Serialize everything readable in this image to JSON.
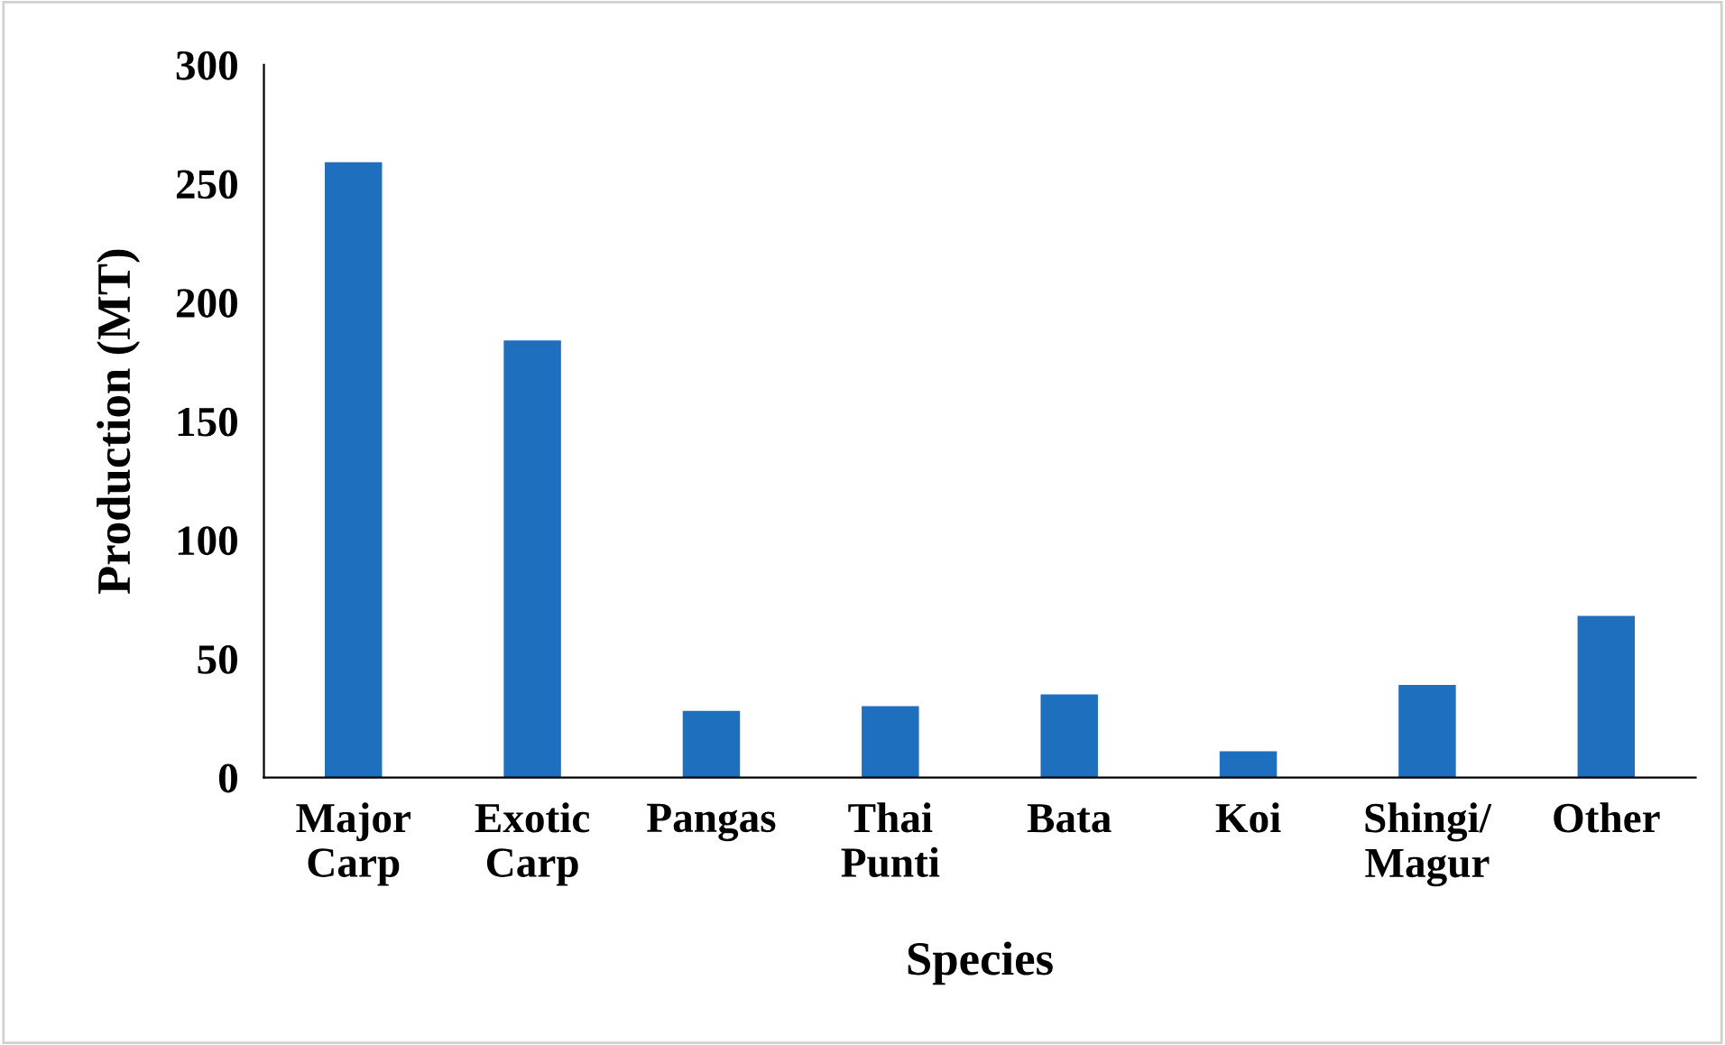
{
  "chart_data": {
    "type": "bar",
    "xlabel": "Species",
    "ylabel": "Production (MT)",
    "categories": [
      "Major\nCarp",
      "Exotic\nCarp",
      "Pangas",
      "Thai\nPunti",
      "Bata",
      "Koi",
      "Shingi/\nMagur",
      "Other"
    ],
    "values": [
      259,
      184,
      28,
      30,
      35,
      11,
      39,
      68
    ],
    "color": "#1f6fbf",
    "ylim": [
      0,
      300
    ],
    "yticks": [
      0,
      50,
      100,
      150,
      200,
      250,
      300
    ],
    "grid": false,
    "legend": false
  }
}
